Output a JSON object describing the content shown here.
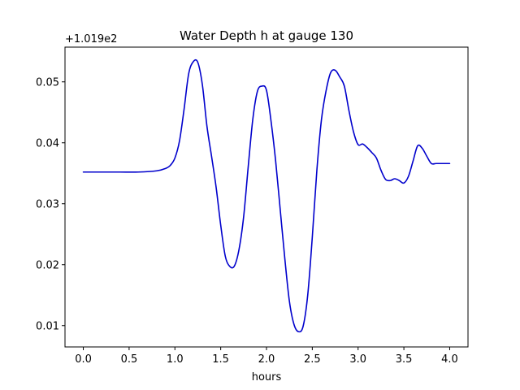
{
  "chart_data": {
    "type": "line",
    "title": "Water Depth h at gauge 130",
    "xlabel": "hours",
    "ylabel": "",
    "offset_text": "+1.019e2",
    "xlim": [
      -0.2,
      4.2
    ],
    "ylim": [
      0.0065,
      0.0557
    ],
    "xticks": [
      0.0,
      0.5,
      1.0,
      1.5,
      2.0,
      2.5,
      3.0,
      3.5,
      4.0
    ],
    "xtick_labels": [
      "0.0",
      "0.5",
      "1.0",
      "1.5",
      "2.0",
      "2.5",
      "3.0",
      "3.5",
      "4.0"
    ],
    "yticks": [
      0.01,
      0.02,
      0.03,
      0.04,
      0.05
    ],
    "ytick_labels": [
      "0.01",
      "0.02",
      "0.03",
      "0.04",
      "0.05"
    ],
    "grid": false,
    "legend": "none",
    "series": [
      {
        "color": "#0000cc",
        "x": [
          0.0,
          0.2,
          0.4,
          0.6,
          0.8,
          0.9,
          0.95,
          1.0,
          1.05,
          1.1,
          1.15,
          1.2,
          1.25,
          1.3,
          1.35,
          1.4,
          1.45,
          1.5,
          1.55,
          1.6,
          1.65,
          1.7,
          1.75,
          1.8,
          1.85,
          1.9,
          1.95,
          2.0,
          2.05,
          2.1,
          2.15,
          2.2,
          2.25,
          2.3,
          2.35,
          2.4,
          2.45,
          2.5,
          2.55,
          2.6,
          2.65,
          2.7,
          2.75,
          2.8,
          2.85,
          2.9,
          2.95,
          3.0,
          3.05,
          3.1,
          3.15,
          3.2,
          3.25,
          3.3,
          3.35,
          3.4,
          3.45,
          3.5,
          3.55,
          3.6,
          3.65,
          3.7,
          3.75,
          3.8,
          3.85,
          3.9,
          3.95,
          4.0
        ],
        "y": [
          0.0352,
          0.0352,
          0.0352,
          0.0352,
          0.0354,
          0.0358,
          0.0363,
          0.0375,
          0.0403,
          0.0455,
          0.0513,
          0.0533,
          0.0532,
          0.0495,
          0.0427,
          0.0378,
          0.0327,
          0.0265,
          0.0214,
          0.0197,
          0.0198,
          0.0225,
          0.0278,
          0.036,
          0.0438,
          0.0484,
          0.0493,
          0.0486,
          0.0435,
          0.037,
          0.029,
          0.021,
          0.014,
          0.0102,
          0.009,
          0.0099,
          0.015,
          0.0245,
          0.0355,
          0.0438,
          0.0485,
          0.0515,
          0.0519,
          0.0508,
          0.0493,
          0.0453,
          0.0418,
          0.0397,
          0.0398,
          0.0392,
          0.0384,
          0.0375,
          0.0355,
          0.034,
          0.0338,
          0.0341,
          0.0338,
          0.0334,
          0.0345,
          0.037,
          0.0395,
          0.0391,
          0.0378,
          0.0366,
          0.0366,
          0.0366,
          0.0366,
          0.0366
        ]
      }
    ]
  }
}
